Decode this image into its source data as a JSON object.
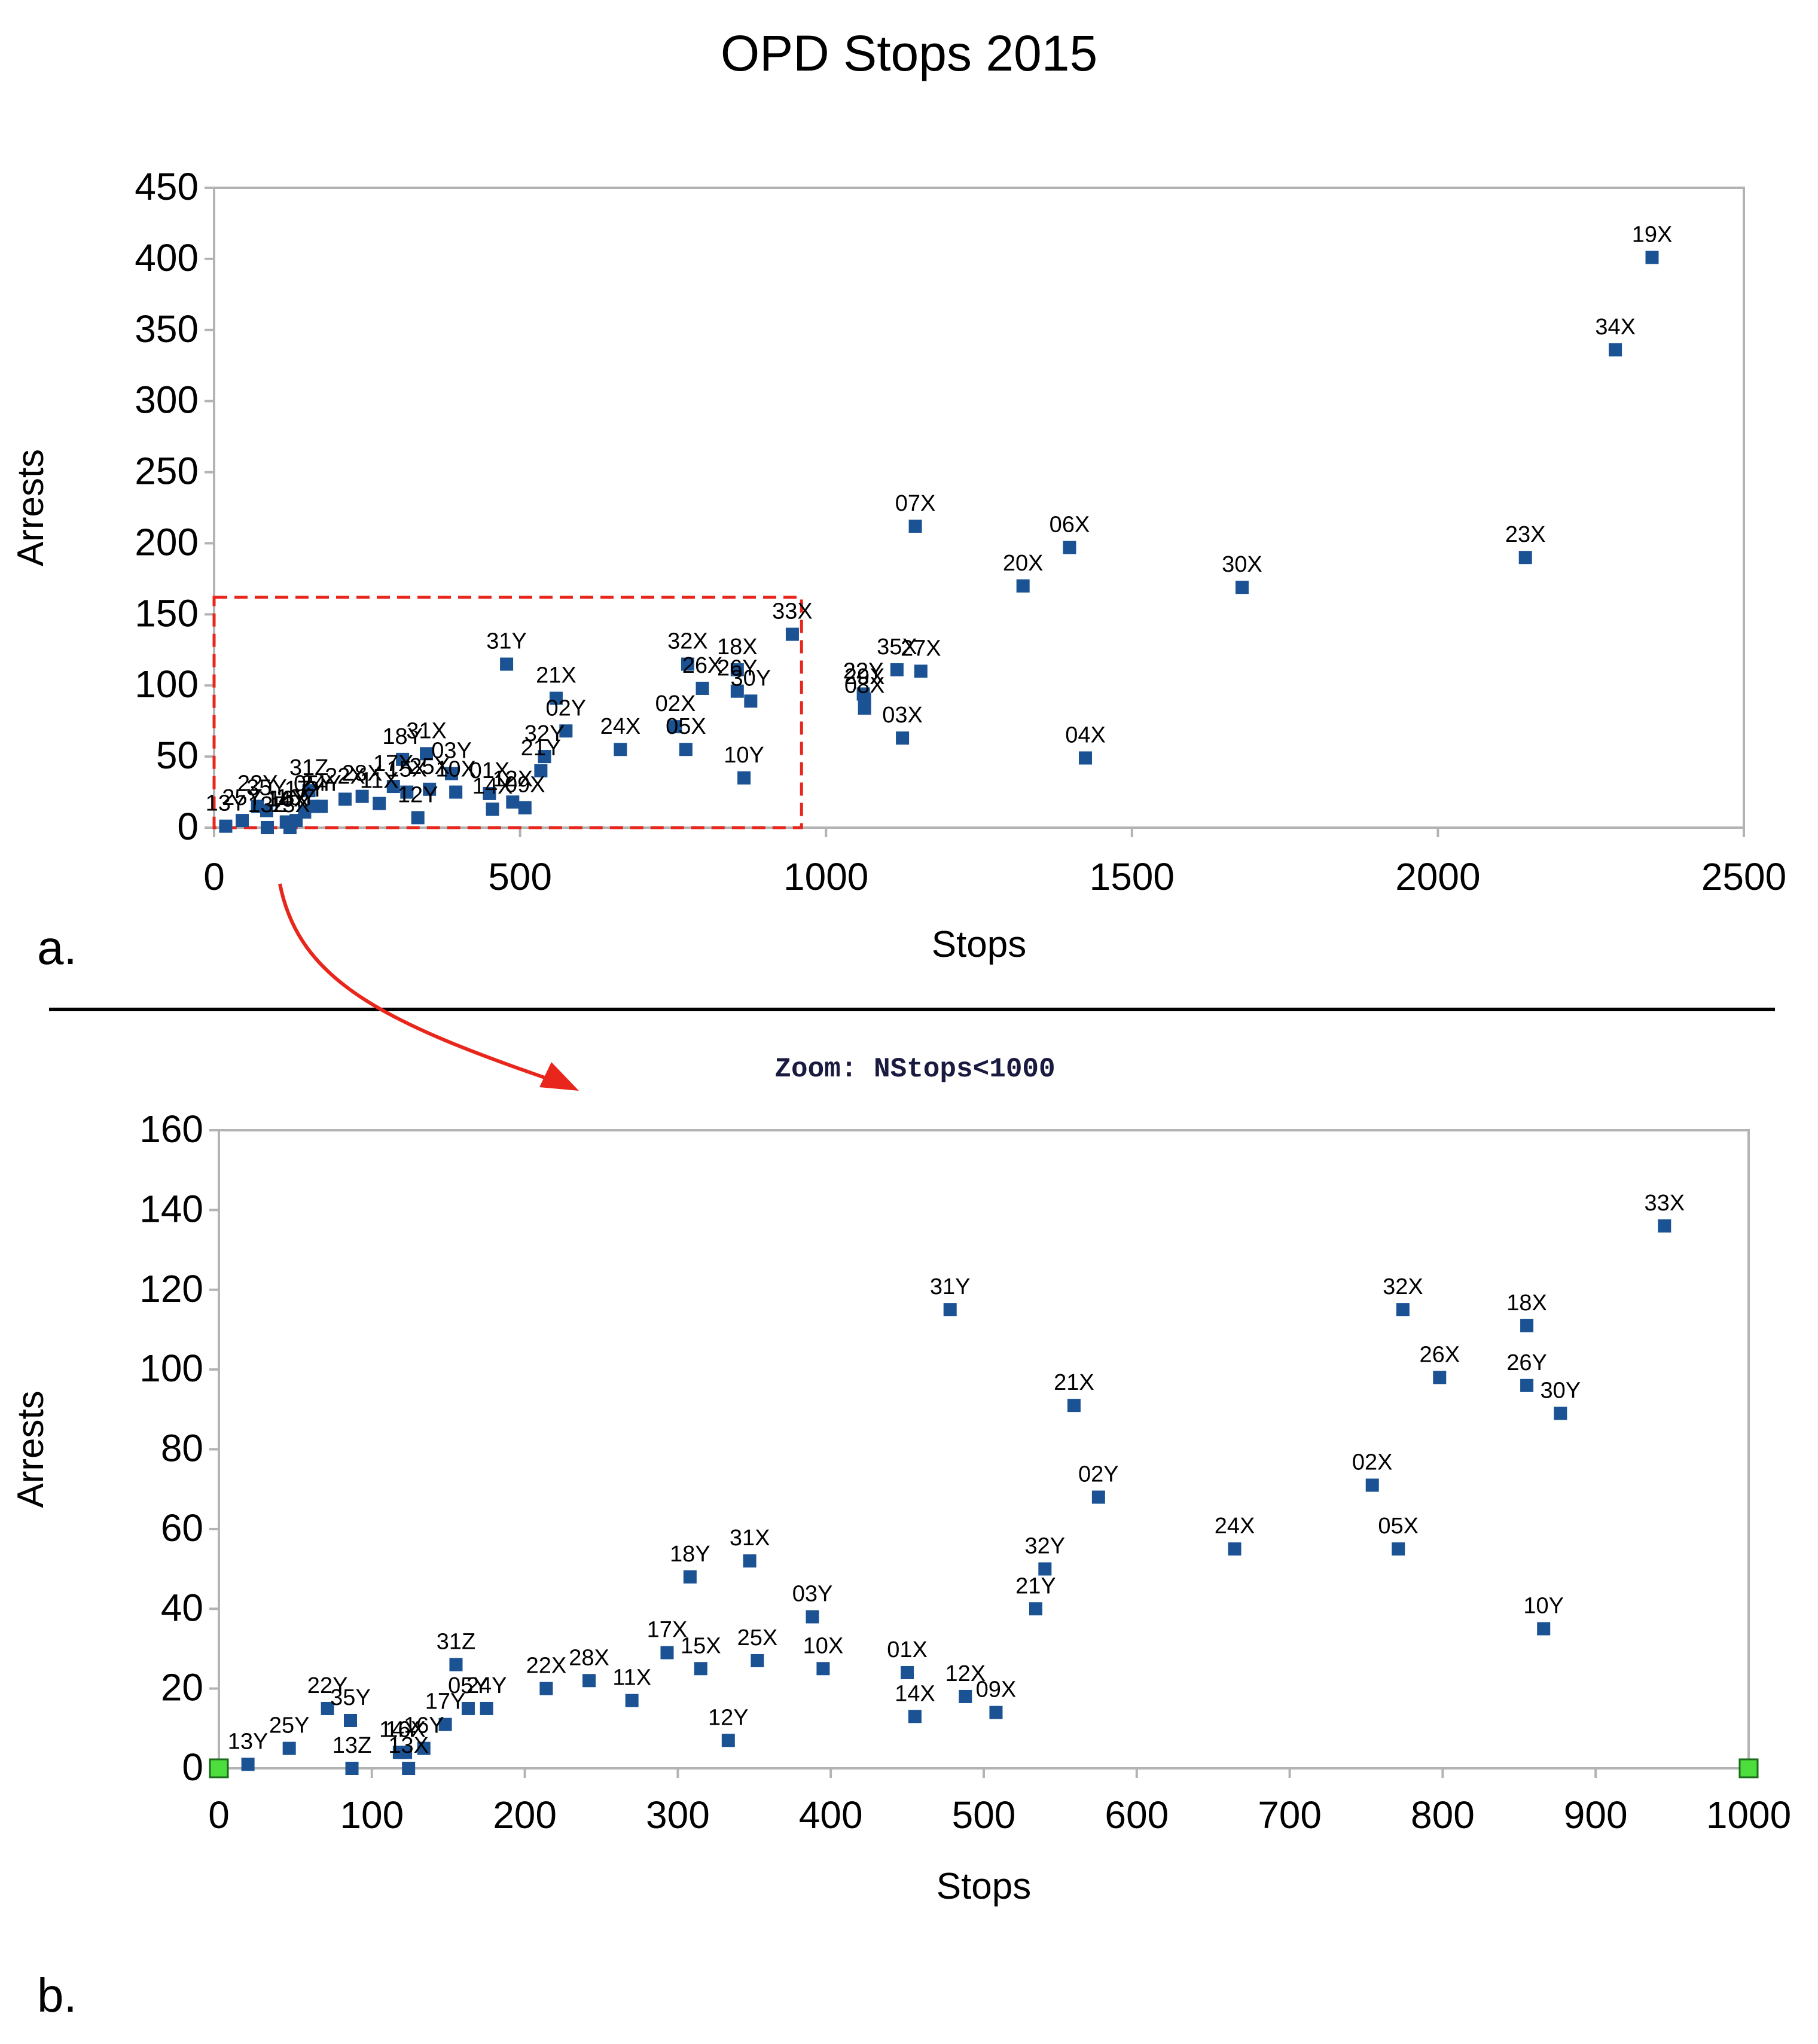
{
  "title": "OPD Stops 2015",
  "panel_a_letter": "a.",
  "panel_b_letter": "b.",
  "zoom_caption": "Zoom: NStops<1000",
  "colors": {
    "marker": "#1a5294",
    "axis": "#b3b3b3",
    "zoom_box": "#e8261c",
    "arrow": "#e8261c",
    "divider": "#000000",
    "endpoint_marker": "#4ddd3c"
  },
  "chart_data": [
    {
      "type": "scatter",
      "title": "OPD Stops 2015",
      "xlabel": "Stops",
      "ylabel": "Arrests",
      "xlim": [
        0,
        2500
      ],
      "ylim": [
        0,
        450
      ],
      "xticks": [
        0,
        500,
        1000,
        1500,
        2000,
        2500
      ],
      "yticks": [
        0,
        50,
        100,
        150,
        200,
        250,
        300,
        350,
        400,
        450
      ],
      "grid": false,
      "zoom_box": {
        "x": [
          0,
          960
        ],
        "y": [
          0,
          162
        ]
      },
      "points": [
        {
          "label": "19X",
          "x": 2350,
          "y": 401
        },
        {
          "label": "34X",
          "x": 2290,
          "y": 336
        },
        {
          "label": "23X",
          "x": 2143,
          "y": 190
        },
        {
          "label": "07X",
          "x": 1146,
          "y": 212
        },
        {
          "label": "06X",
          "x": 1398,
          "y": 197
        },
        {
          "label": "20X",
          "x": 1322,
          "y": 170
        },
        {
          "label": "30X",
          "x": 1680,
          "y": 169
        },
        {
          "label": "33X",
          "x": 945,
          "y": 136
        },
        {
          "label": "31Y",
          "x": 478,
          "y": 115
        },
        {
          "label": "32X",
          "x": 774,
          "y": 115
        },
        {
          "label": "18X",
          "x": 855,
          "y": 111
        },
        {
          "label": "35X",
          "x": 1116,
          "y": 111
        },
        {
          "label": "27X",
          "x": 1155,
          "y": 110
        },
        {
          "label": "26X",
          "x": 798,
          "y": 98
        },
        {
          "label": "26Y",
          "x": 855,
          "y": 96
        },
        {
          "label": "22Y",
          "x": 1061,
          "y": 94
        },
        {
          "label": "29X",
          "x": 1063,
          "y": 90
        },
        {
          "label": "21X",
          "x": 559,
          "y": 91
        },
        {
          "label": "30Y",
          "x": 877,
          "y": 89
        },
        {
          "label": "08X",
          "x": 1063,
          "y": 84
        },
        {
          "label": "02X",
          "x": 754,
          "y": 71
        },
        {
          "label": "02Y",
          "x": 575,
          "y": 68
        },
        {
          "label": "03X",
          "x": 1125,
          "y": 63
        },
        {
          "label": "24X",
          "x": 664,
          "y": 55
        },
        {
          "label": "05X",
          "x": 771,
          "y": 55
        },
        {
          "label": "32Y",
          "x": 540,
          "y": 50
        },
        {
          "label": "31X",
          "x": 347,
          "y": 52
        },
        {
          "label": "04X",
          "x": 1424,
          "y": 49
        },
        {
          "label": "18Y",
          "x": 308,
          "y": 48
        },
        {
          "label": "21Y",
          "x": 534,
          "y": 40
        },
        {
          "label": "03Y",
          "x": 388,
          "y": 38
        },
        {
          "label": "10Y",
          "x": 866,
          "y": 35
        },
        {
          "label": "17X",
          "x": 293,
          "y": 29
        },
        {
          "label": "25X",
          "x": 352,
          "y": 27
        },
        {
          "label": "31Z",
          "x": 155,
          "y": 26
        },
        {
          "label": "15X",
          "x": 315,
          "y": 25
        },
        {
          "label": "10X",
          "x": 395,
          "y": 25
        },
        {
          "label": "01X",
          "x": 450,
          "y": 24
        },
        {
          "label": "28X",
          "x": 242,
          "y": 22
        },
        {
          "label": "22X",
          "x": 214,
          "y": 20
        },
        {
          "label": "12X",
          "x": 488,
          "y": 18
        },
        {
          "label": "11X",
          "x": 270,
          "y": 17
        },
        {
          "label": "05Y",
          "x": 163,
          "y": 15
        },
        {
          "label": "24Y",
          "x": 175,
          "y": 15
        },
        {
          "label": "22Y",
          "x": 71,
          "y": 15
        },
        {
          "label": "09X",
          "x": 508,
          "y": 14
        },
        {
          "label": "14X",
          "x": 455,
          "y": 13
        },
        {
          "label": "35Y",
          "x": 86,
          "y": 12
        },
        {
          "label": "17Y",
          "x": 148,
          "y": 11
        },
        {
          "label": "12Y",
          "x": 333,
          "y": 7
        },
        {
          "label": "25Y",
          "x": 46,
          "y": 5
        },
        {
          "label": "16Y",
          "x": 134,
          "y": 5
        },
        {
          "label": "14Y",
          "x": 118,
          "y": 4
        },
        {
          "label": "16X",
          "x": 122,
          "y": 4
        },
        {
          "label": "13Y",
          "x": 19,
          "y": 1
        },
        {
          "label": "13Z",
          "x": 87,
          "y": 0
        },
        {
          "label": "13X",
          "x": 124,
          "y": 0
        }
      ]
    },
    {
      "type": "scatter",
      "title": "Zoom: NStops<1000",
      "xlabel": "Stops",
      "ylabel": "Arrests",
      "xlim": [
        0,
        1000
      ],
      "ylim": [
        0,
        160
      ],
      "xticks": [
        0,
        100,
        200,
        300,
        400,
        500,
        600,
        700,
        800,
        900,
        1000
      ],
      "yticks": [
        0,
        20,
        40,
        60,
        80,
        100,
        120,
        140,
        160
      ],
      "grid": false,
      "endpoint_markers": [
        {
          "x": 0,
          "y": 0
        },
        {
          "x": 1000,
          "y": 0
        }
      ],
      "points": [
        {
          "label": "33X",
          "x": 945,
          "y": 136
        },
        {
          "label": "31Y",
          "x": 478,
          "y": 115
        },
        {
          "label": "32X",
          "x": 774,
          "y": 115
        },
        {
          "label": "18X",
          "x": 855,
          "y": 111
        },
        {
          "label": "26X",
          "x": 798,
          "y": 98
        },
        {
          "label": "26Y",
          "x": 855,
          "y": 96
        },
        {
          "label": "21X",
          "x": 559,
          "y": 91
        },
        {
          "label": "30Y",
          "x": 877,
          "y": 89
        },
        {
          "label": "02X",
          "x": 754,
          "y": 71
        },
        {
          "label": "02Y",
          "x": 575,
          "y": 68
        },
        {
          "label": "24X",
          "x": 664,
          "y": 55
        },
        {
          "label": "05X",
          "x": 771,
          "y": 55
        },
        {
          "label": "31X",
          "x": 347,
          "y": 52
        },
        {
          "label": "32Y",
          "x": 540,
          "y": 50
        },
        {
          "label": "18Y",
          "x": 308,
          "y": 48
        },
        {
          "label": "21Y",
          "x": 534,
          "y": 40
        },
        {
          "label": "03Y",
          "x": 388,
          "y": 38
        },
        {
          "label": "10Y",
          "x": 866,
          "y": 35
        },
        {
          "label": "17X",
          "x": 293,
          "y": 29
        },
        {
          "label": "25X",
          "x": 352,
          "y": 27
        },
        {
          "label": "31Z",
          "x": 155,
          "y": 26
        },
        {
          "label": "15X",
          "x": 315,
          "y": 25
        },
        {
          "label": "10X",
          "x": 395,
          "y": 25
        },
        {
          "label": "01X",
          "x": 450,
          "y": 24
        },
        {
          "label": "28X",
          "x": 242,
          "y": 22
        },
        {
          "label": "22X",
          "x": 214,
          "y": 20
        },
        {
          "label": "12X",
          "x": 488,
          "y": 18
        },
        {
          "label": "11X",
          "x": 270,
          "y": 17
        },
        {
          "label": "05Y",
          "x": 163,
          "y": 15
        },
        {
          "label": "24Y",
          "x": 175,
          "y": 15
        },
        {
          "label": "22Y",
          "x": 71,
          "y": 15
        },
        {
          "label": "09X",
          "x": 508,
          "y": 14
        },
        {
          "label": "14X",
          "x": 455,
          "y": 13
        },
        {
          "label": "35Y",
          "x": 86,
          "y": 12
        },
        {
          "label": "17Y",
          "x": 148,
          "y": 11
        },
        {
          "label": "12Y",
          "x": 333,
          "y": 7
        },
        {
          "label": "25Y",
          "x": 46,
          "y": 5
        },
        {
          "label": "16Y",
          "x": 134,
          "y": 5
        },
        {
          "label": "14Y",
          "x": 118,
          "y": 4
        },
        {
          "label": "16X",
          "x": 122,
          "y": 4
        },
        {
          "label": "13Y",
          "x": 19,
          "y": 1
        },
        {
          "label": "13Z",
          "x": 87,
          "y": 0
        },
        {
          "label": "13X",
          "x": 124,
          "y": 0
        }
      ]
    }
  ]
}
